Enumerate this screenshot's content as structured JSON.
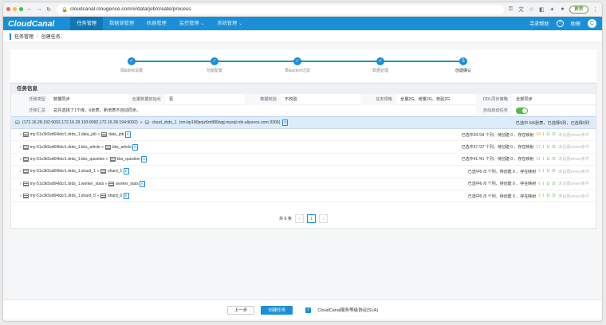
{
  "browser": {
    "url": "cloudcanal.clougence.com/#/data/job/create/process",
    "update_label": "更新"
  },
  "app": {
    "logo": "CloudCanal",
    "menu": [
      {
        "label": "任务管理",
        "active": true
      },
      {
        "label": "数据源管理",
        "active": false
      },
      {
        "label": "机器管理",
        "active": false
      },
      {
        "label": "监控管理 ⌄",
        "active": false
      },
      {
        "label": "系统管理 ⌄",
        "active": false
      }
    ],
    "help": "寻求帮助",
    "question": "?",
    "user": "助理",
    "avatar": "C"
  },
  "breadcrumb": {
    "parent": "任务管理",
    "sep": "/",
    "current": "创建任务"
  },
  "steps": [
    {
      "label": "源&目标设置",
      "icon": "✓"
    },
    {
      "label": "功能配置",
      "icon": "✓"
    },
    {
      "label": "表&action过滤",
      "icon": "✓"
    },
    {
      "label": "数据处理",
      "icon": "✓"
    },
    {
      "label": "创建确认",
      "icon": "5"
    }
  ],
  "task_info": {
    "title": "任务信息",
    "migration_type_label": "迁移类型",
    "migration_type": "数据同步",
    "full_init_label": "全量数据初始化",
    "full_init": "否",
    "data_check_label": "数据校验",
    "data_check": "不校验",
    "spec_label": "任务规格",
    "spec": "全量2G、增量2G、校验2G",
    "ddl_label": "DDL同步策略",
    "ddl": "全部同步",
    "summary_label": "迁移汇总",
    "summary": "总共选择了1个库、6张表。新增表不自动同步。",
    "autostart_label": "自动启动任务"
  },
  "db_line": {
    "source": "(172.16.28.192:9092,172.16.28.193:9092,172.16.28.194:9092)",
    "arrow": "»",
    "target": "cloud_drds_1",
    "target_instance": "(rm-bp190pnjz6m880wgj.mysql.rds.aliyuncs.com:3306)",
    "tag": "K",
    "status": "已选中 6/6张表，已选择0列，已选择0列"
  },
  "tables": [
    {
      "source": "my-51x3k5sd64ldcr1.drds_1.data_job",
      "target": "data_job",
      "status": "已选中34 /34 个列、待创建 0 、存在映射",
      "count": "34"
    },
    {
      "source": "my-51x3k5sd64ldcr1.drds_1.kbs_article",
      "target": "kbs_article",
      "status": "已选中37 /37 个列、待创建 0 、存在映射",
      "count": "37"
    },
    {
      "source": "my-51x3k5sd64ldcr1.drds_1.kbs_question",
      "target": "kbs_question",
      "status": "已选中41 /41 个列、待创建 0 、存在映射",
      "count": "41"
    },
    {
      "source": "my-51x3k5sd64ldcr1.drds_1.shard_1",
      "target": "shard_1",
      "status": "已选中5 /5 个列、待创建 0 、存在映射",
      "count": "5"
    },
    {
      "source": "my-51x3k5sd64ldcr1.drds_1.worker_stats",
      "target": "worker_stats",
      "status": "已选中6 /6 个列、待创建 0 、存在映射",
      "count": "6"
    },
    {
      "source": "my-51x3k5sd64ldcr1.drds_1.shard_0",
      "target": "shard_0",
      "status": "已选中5 /5 个列、待创建 0 、存在映射",
      "count": "5"
    }
  ],
  "table_tag": "K",
  "iud": "I U D",
  "pruned": "未设置where条件",
  "pager": {
    "total": "共 6 条",
    "prev": "‹",
    "page": "1",
    "next": "›"
  },
  "footer": {
    "prev": "上一步",
    "create": "创建任务",
    "sla": "CloudCanal服务等级协议(SLA)"
  }
}
